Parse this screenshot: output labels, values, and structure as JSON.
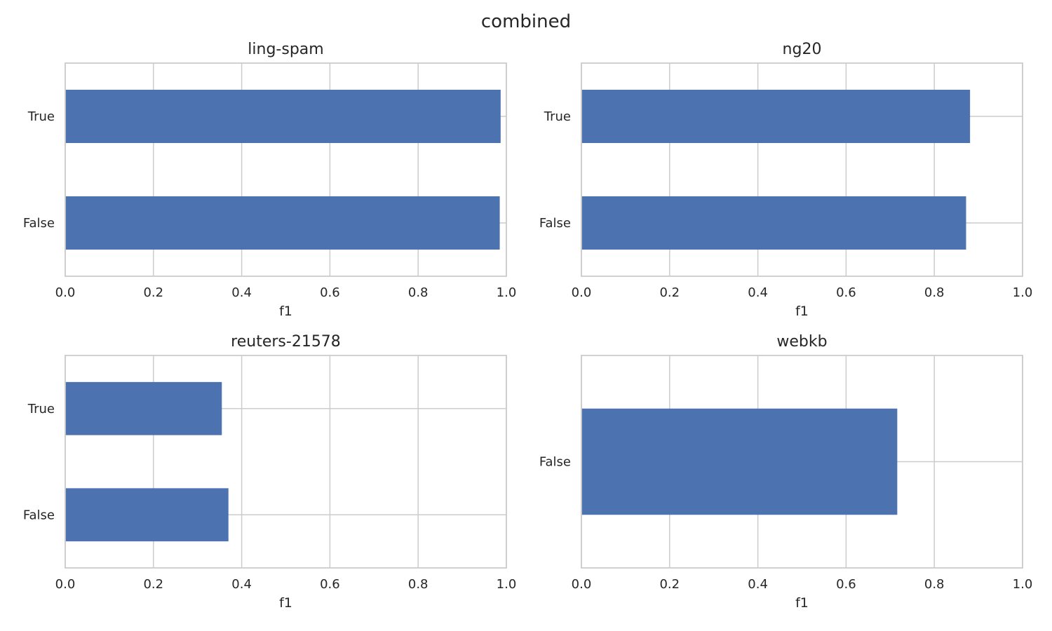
{
  "figure_title": "combined",
  "chart_data": [
    {
      "type": "bar",
      "orientation": "horizontal",
      "title": "ling-spam",
      "categories": [
        "True",
        "False"
      ],
      "values": [
        0.987,
        0.985
      ],
      "xlabel": "f1",
      "ylabel": "",
      "xlim": [
        0,
        1.0
      ],
      "xticks": [
        "0.0",
        "0.2",
        "0.4",
        "0.6",
        "0.8",
        "1.0"
      ],
      "grid": true,
      "color": "#4c72b0"
    },
    {
      "type": "bar",
      "orientation": "horizontal",
      "title": "ng20",
      "categories": [
        "True",
        "False"
      ],
      "values": [
        0.881,
        0.872
      ],
      "xlabel": "f1",
      "ylabel": "",
      "xlim": [
        0,
        1.0
      ],
      "xticks": [
        "0.0",
        "0.2",
        "0.4",
        "0.6",
        "0.8",
        "1.0"
      ],
      "grid": true,
      "color": "#4c72b0"
    },
    {
      "type": "bar",
      "orientation": "horizontal",
      "title": "reuters-21578",
      "categories": [
        "True",
        "False"
      ],
      "values": [
        0.355,
        0.37
      ],
      "xlabel": "f1",
      "ylabel": "",
      "xlim": [
        0,
        1.0
      ],
      "xticks": [
        "0.0",
        "0.2",
        "0.4",
        "0.6",
        "0.8",
        "1.0"
      ],
      "grid": true,
      "color": "#4c72b0"
    },
    {
      "type": "bar",
      "orientation": "horizontal",
      "title": "webkb",
      "categories": [
        "False"
      ],
      "values": [
        0.716
      ],
      "xlabel": "f1",
      "ylabel": "",
      "xlim": [
        0,
        1.0
      ],
      "xticks": [
        "0.0",
        "0.2",
        "0.4",
        "0.6",
        "0.8",
        "1.0"
      ],
      "grid": true,
      "color": "#4c72b0"
    }
  ]
}
